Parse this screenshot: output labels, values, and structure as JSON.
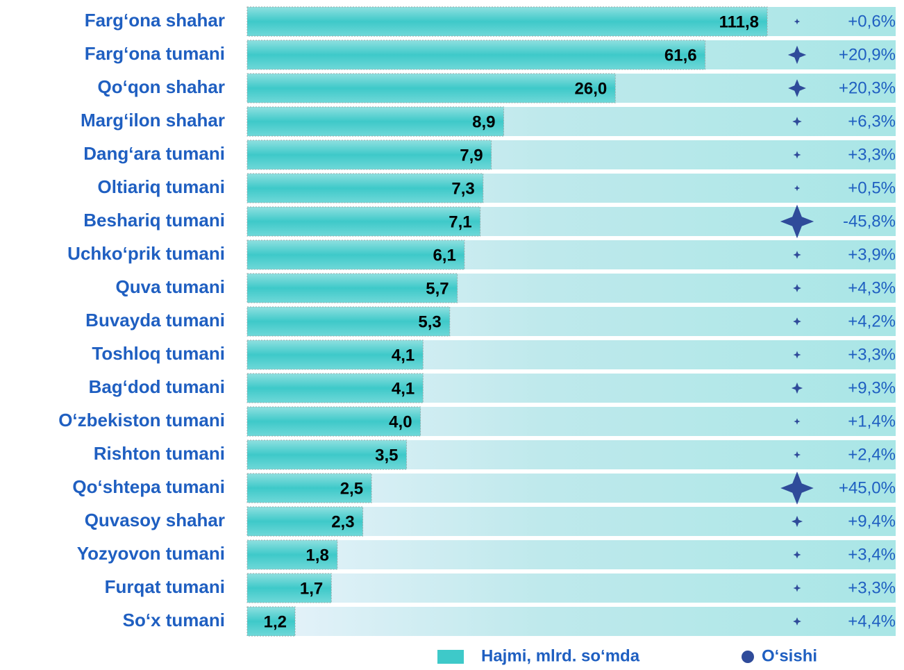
{
  "chart_data": {
    "type": "bar",
    "orientation": "horizontal",
    "log_scale": true,
    "categories": [
      "Farg‘ona shahar",
      "Farg‘ona tumani",
      "Qo‘qon shahar",
      "Marg‘ilon shahar",
      "Dang‘ara tumani",
      "Oltiariq tumani",
      "Beshariq tumani",
      "Uchko‘prik tumani",
      "Quva tumani",
      "Buvayda tumani",
      "Toshloq tumani",
      "Bag‘dod tumani",
      "O‘zbekiston tumani",
      "Rishton tumani",
      "Qo‘shtepa tumani",
      "Quvasoy shahar",
      "Yozyovon tumani",
      "Furqat tumani",
      "So‘x tumani"
    ],
    "series": [
      {
        "name": "Hajmi, mlrd. so‘mda",
        "color": "#3ec9c9",
        "values": [
          111.8,
          61.6,
          26.0,
          8.9,
          7.9,
          7.3,
          7.1,
          6.1,
          5.7,
          5.3,
          4.1,
          4.1,
          4.0,
          3.5,
          2.5,
          2.3,
          1.8,
          1.7,
          1.2
        ],
        "value_labels": [
          "111,8",
          "61,6",
          "26,0",
          "8,9",
          "7,9",
          "7,3",
          "7,1",
          "6,1",
          "5,7",
          "5,3",
          "4,1",
          "4,1",
          "4,0",
          "3,5",
          "2,5",
          "2,3",
          "1,8",
          "1,7",
          "1,2"
        ]
      },
      {
        "name": "O‘sishi",
        "color": "#2f4b9a",
        "negative_color": "#c55a11",
        "values": [
          0.6,
          20.9,
          20.3,
          6.3,
          3.3,
          0.5,
          -45.8,
          3.9,
          4.3,
          4.2,
          3.3,
          9.3,
          1.4,
          2.4,
          45.0,
          9.4,
          3.4,
          3.3,
          4.4
        ],
        "value_labels": [
          "+0,6%",
          "+20,9%",
          "+20,3%",
          "+6,3%",
          "+3,3%",
          "+0,5%",
          "-45,8%",
          "+3,9%",
          "+4,3%",
          "+4,2%",
          "+3,3%",
          "+9,3%",
          "+1,4%",
          "+2,4%",
          "+45,0%",
          "+9,4%",
          "+3,4%",
          "+3,3%",
          "+4,4%"
        ]
      }
    ]
  }
}
